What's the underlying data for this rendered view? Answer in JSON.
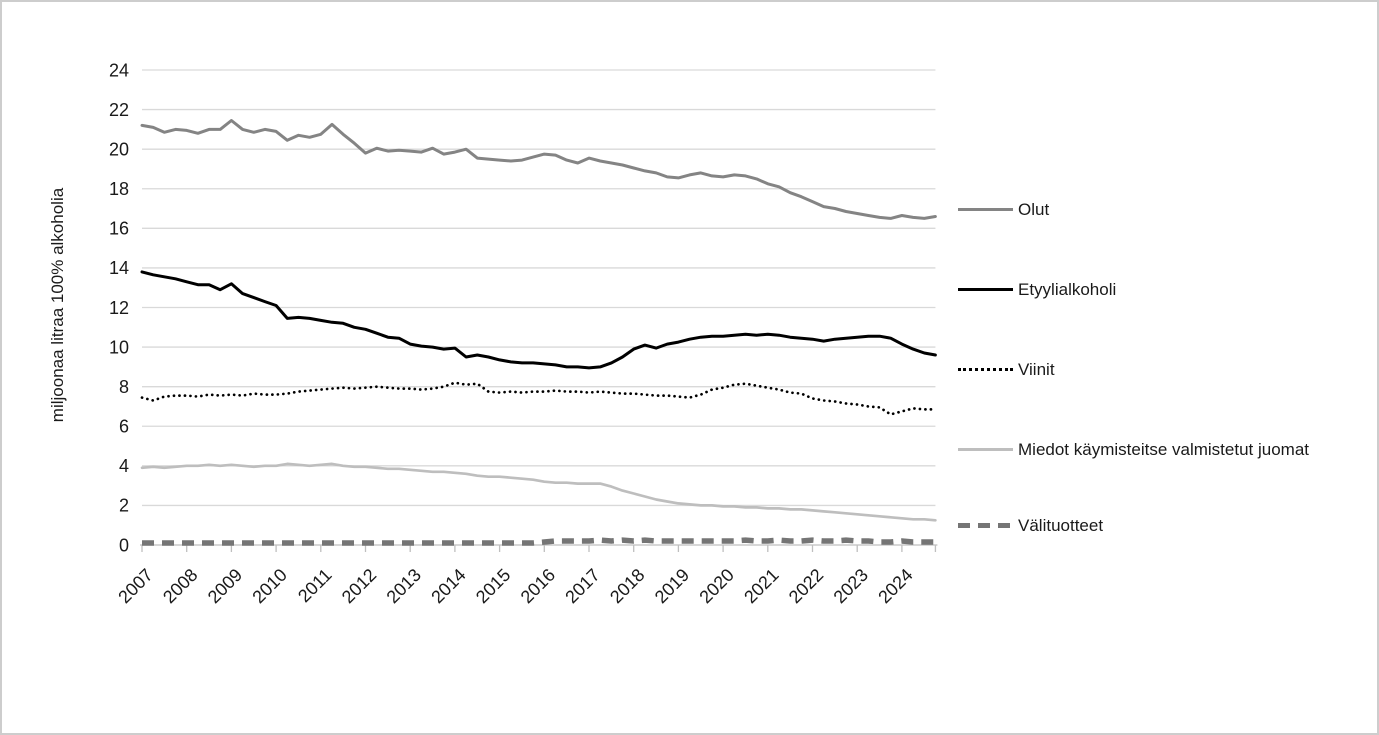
{
  "chart_data": {
    "type": "line",
    "title": "",
    "xlabel": "",
    "ylabel": "miljoonaa litraa 100% alkoholia",
    "ylim": [
      0,
      24
    ],
    "ytick_step": 2,
    "grid": "horizontal",
    "legend_position": "right",
    "categories": [
      "2007",
      "2008",
      "2009",
      "2010",
      "2011",
      "2012",
      "2013",
      "2014",
      "2015",
      "2016",
      "2017",
      "2018",
      "2019",
      "2020",
      "2021",
      "2022",
      "2023",
      "2024"
    ],
    "samples_per_year": 4,
    "colors": {
      "olut": "#848484",
      "etyylialkoholi": "#000000",
      "viinit": "#000000",
      "miedot": "#bebebe",
      "valituotteet": "#757575",
      "gridline": "#d9d9d9",
      "axis": "#bfbfbf",
      "text": "#1a1a1a"
    },
    "series": [
      {
        "id": "olut",
        "name": "Olut",
        "style": "solid",
        "color": "#848484",
        "values": [
          21.2,
          21.1,
          20.85,
          21.0,
          20.95,
          20.8,
          21.0,
          21.0,
          21.45,
          21.0,
          20.85,
          21.0,
          20.9,
          20.45,
          20.7,
          20.6,
          20.75,
          21.25,
          20.75,
          20.3,
          19.8,
          20.05,
          19.9,
          19.95,
          19.9,
          19.85,
          20.05,
          19.75,
          19.85,
          20.0,
          19.55,
          19.5,
          19.45,
          19.4,
          19.45,
          19.6,
          19.75,
          19.7,
          19.45,
          19.3,
          19.55,
          19.4,
          19.3,
          19.2,
          19.05,
          18.9,
          18.8,
          18.6,
          18.55,
          18.7,
          18.8,
          18.65,
          18.6,
          18.7,
          18.65,
          18.5,
          18.25,
          18.1,
          17.8,
          17.6,
          17.35,
          17.1,
          17.0,
          16.85,
          16.75,
          16.65,
          16.55,
          16.5,
          16.65,
          16.55,
          16.5,
          16.6
        ]
      },
      {
        "id": "etyylialkoholi",
        "name": "Etyylialkoholi",
        "style": "solid",
        "color": "#000000",
        "values": [
          13.8,
          13.65,
          13.55,
          13.45,
          13.3,
          13.15,
          13.15,
          12.9,
          13.2,
          12.7,
          12.5,
          12.3,
          12.1,
          11.45,
          11.5,
          11.45,
          11.35,
          11.25,
          11.2,
          11.0,
          10.9,
          10.7,
          10.5,
          10.45,
          10.15,
          10.05,
          10.0,
          9.9,
          9.95,
          9.5,
          9.6,
          9.5,
          9.35,
          9.25,
          9.2,
          9.2,
          9.15,
          9.1,
          9.0,
          9.0,
          8.95,
          9.0,
          9.2,
          9.5,
          9.9,
          10.1,
          9.95,
          10.15,
          10.25,
          10.4,
          10.5,
          10.55,
          10.55,
          10.6,
          10.65,
          10.6,
          10.65,
          10.6,
          10.5,
          10.45,
          10.4,
          10.3,
          10.4,
          10.45,
          10.5,
          10.55,
          10.55,
          10.45,
          10.15,
          9.9,
          9.7,
          9.6
        ]
      },
      {
        "id": "viinit",
        "name": "Viinit",
        "style": "dotted",
        "color": "#000000",
        "values": [
          7.45,
          7.3,
          7.5,
          7.55,
          7.55,
          7.5,
          7.6,
          7.55,
          7.6,
          7.55,
          7.65,
          7.6,
          7.6,
          7.65,
          7.75,
          7.8,
          7.85,
          7.9,
          7.95,
          7.9,
          7.95,
          8.0,
          7.95,
          7.9,
          7.9,
          7.85,
          7.9,
          8.0,
          8.2,
          8.1,
          8.15,
          7.75,
          7.7,
          7.75,
          7.7,
          7.75,
          7.75,
          7.8,
          7.75,
          7.75,
          7.7,
          7.75,
          7.7,
          7.65,
          7.65,
          7.6,
          7.55,
          7.55,
          7.5,
          7.45,
          7.6,
          7.85,
          7.95,
          8.1,
          8.15,
          8.05,
          7.95,
          7.85,
          7.7,
          7.65,
          7.4,
          7.3,
          7.25,
          7.15,
          7.1,
          7.0,
          6.95,
          6.6,
          6.75,
          6.9,
          6.85,
          6.85
        ]
      },
      {
        "id": "miedot",
        "name": "Miedot käymisteitse valmistetut juomat",
        "style": "solid",
        "color": "#bebebe",
        "values": [
          3.9,
          3.95,
          3.9,
          3.95,
          4.0,
          4.0,
          4.05,
          4.0,
          4.05,
          4.0,
          3.95,
          4.0,
          4.0,
          4.1,
          4.05,
          4.0,
          4.05,
          4.1,
          4.0,
          3.95,
          3.95,
          3.9,
          3.85,
          3.85,
          3.8,
          3.75,
          3.7,
          3.7,
          3.65,
          3.6,
          3.5,
          3.45,
          3.45,
          3.4,
          3.35,
          3.3,
          3.2,
          3.15,
          3.15,
          3.1,
          3.1,
          3.1,
          2.95,
          2.75,
          2.6,
          2.45,
          2.3,
          2.2,
          2.1,
          2.05,
          2.0,
          2.0,
          1.95,
          1.95,
          1.9,
          1.9,
          1.85,
          1.85,
          1.8,
          1.8,
          1.75,
          1.7,
          1.65,
          1.6,
          1.55,
          1.5,
          1.45,
          1.4,
          1.35,
          1.3,
          1.3,
          1.25
        ]
      },
      {
        "id": "valituotteet",
        "name": "Välituotteet",
        "style": "dashed",
        "color": "#757575",
        "values": [
          0.1,
          0.1,
          0.1,
          0.1,
          0.1,
          0.1,
          0.1,
          0.1,
          0.1,
          0.1,
          0.1,
          0.1,
          0.1,
          0.1,
          0.1,
          0.1,
          0.1,
          0.1,
          0.1,
          0.1,
          0.1,
          0.1,
          0.1,
          0.1,
          0.1,
          0.1,
          0.1,
          0.1,
          0.1,
          0.1,
          0.1,
          0.1,
          0.1,
          0.1,
          0.1,
          0.1,
          0.15,
          0.2,
          0.2,
          0.2,
          0.2,
          0.25,
          0.2,
          0.25,
          0.2,
          0.25,
          0.2,
          0.2,
          0.2,
          0.2,
          0.2,
          0.2,
          0.2,
          0.2,
          0.25,
          0.2,
          0.2,
          0.25,
          0.2,
          0.2,
          0.25,
          0.2,
          0.2,
          0.25,
          0.2,
          0.2,
          0.15,
          0.15,
          0.2,
          0.15,
          0.15,
          0.15
        ]
      }
    ]
  }
}
